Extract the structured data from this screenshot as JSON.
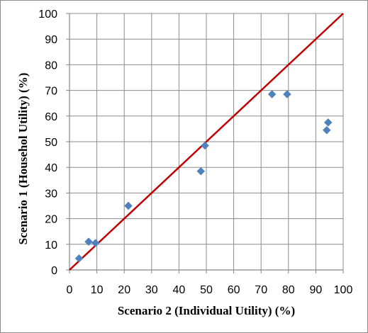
{
  "chart_data": {
    "type": "scatter",
    "title": "",
    "xlabel": "Scenario 2 (Individual Utility) (%)",
    "ylabel": "Scenario 1 (Househol Utility) (%)",
    "xlim": [
      0,
      100
    ],
    "ylim": [
      0,
      100
    ],
    "xticks": [
      0,
      10,
      20,
      30,
      40,
      50,
      60,
      70,
      80,
      90,
      100
    ],
    "yticks": [
      0,
      10,
      20,
      30,
      40,
      50,
      60,
      70,
      80,
      90,
      100
    ],
    "grid": true,
    "legend": "none",
    "series": [
      {
        "marker": "diamond",
        "color": "#4F81BD",
        "points": [
          {
            "x": 3.5,
            "y": 4.5
          },
          {
            "x": 7,
            "y": 11
          },
          {
            "x": 9.5,
            "y": 10.5
          },
          {
            "x": 21.5,
            "y": 25
          },
          {
            "x": 48,
            "y": 38.5
          },
          {
            "x": 49.5,
            "y": 48.5
          },
          {
            "x": 74,
            "y": 68.5
          },
          {
            "x": 79.5,
            "y": 68.5
          },
          {
            "x": 94,
            "y": 54.5
          },
          {
            "x": 94.5,
            "y": 57.5
          }
        ]
      }
    ],
    "reference_line": {
      "points": [
        {
          "x": 0,
          "y": 0
        },
        {
          "x": 100,
          "y": 100
        }
      ],
      "color": "#C00000"
    }
  }
}
